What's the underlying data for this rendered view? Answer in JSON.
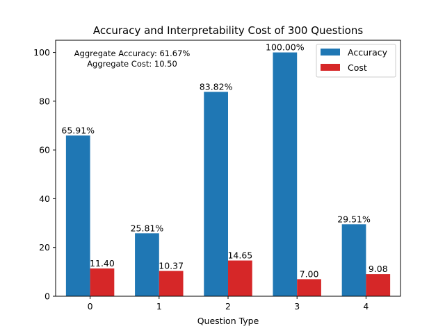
{
  "chart_data": {
    "type": "bar",
    "title": "Accuracy and Interpretability Cost of 300 Questions",
    "xlabel": "Question Type",
    "ylabel": "",
    "categories": [
      "0",
      "1",
      "2",
      "3",
      "4"
    ],
    "series": [
      {
        "name": "Accuracy",
        "color": "#1f77b4",
        "values": [
          65.91,
          25.81,
          83.82,
          100.0,
          29.51
        ],
        "labels": [
          "65.91%",
          "25.81%",
          "83.82%",
          "100.00%",
          "29.51%"
        ]
      },
      {
        "name": "Cost",
        "color": "#d62728",
        "values": [
          11.4,
          10.37,
          14.65,
          7.0,
          9.08
        ],
        "labels": [
          "11.40",
          "10.37",
          "14.65",
          "7.00",
          "9.08"
        ]
      }
    ],
    "ylim": [
      0,
      105
    ],
    "yticks": [
      0,
      20,
      40,
      60,
      80,
      100
    ],
    "grid": false,
    "legend_position": "top-right",
    "annotations": [
      "Aggregate Accuracy: 61.67%",
      "Aggregate Cost: 10.50"
    ]
  }
}
